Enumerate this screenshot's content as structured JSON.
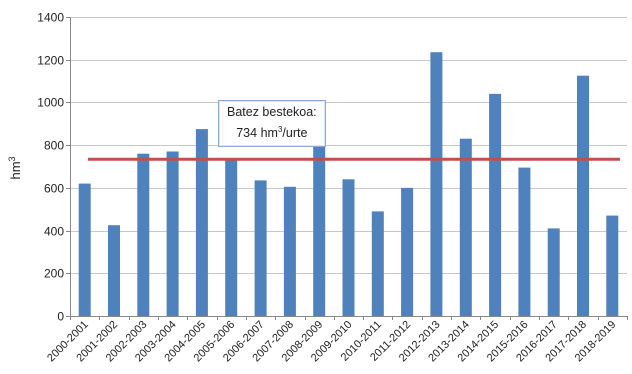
{
  "chart_data": {
    "type": "bar",
    "ylabel": "hm",
    "ylabel_sup": "3",
    "ylim": [
      0,
      1400
    ],
    "yticks": [
      0,
      200,
      400,
      600,
      800,
      1000,
      1200,
      1400
    ],
    "grid": true,
    "categories": [
      "2000-2001",
      "2001-2002",
      "2002-2003",
      "2003-2004",
      "2004-2005",
      "2005-2006",
      "2006-2007",
      "2007-2008",
      "2008-2009",
      "2009-2010",
      "2010-2011",
      "2011-2012",
      "2012-2013",
      "2013-2014",
      "2014-2015",
      "2015-2016",
      "2016-2017",
      "2017-2018",
      "2018-2019"
    ],
    "values": [
      620,
      425,
      760,
      770,
      875,
      735,
      635,
      605,
      960,
      640,
      490,
      600,
      1235,
      830,
      1040,
      695,
      410,
      1125,
      470
    ],
    "bar_color": "#4f81bd",
    "reference_line": {
      "value": 734,
      "color": "#c0504d"
    },
    "annotation": {
      "line1": "Batez bestekoa:",
      "line2_value": "734 hm",
      "line2_sup": "3",
      "line2_suffix": "/urte"
    }
  }
}
